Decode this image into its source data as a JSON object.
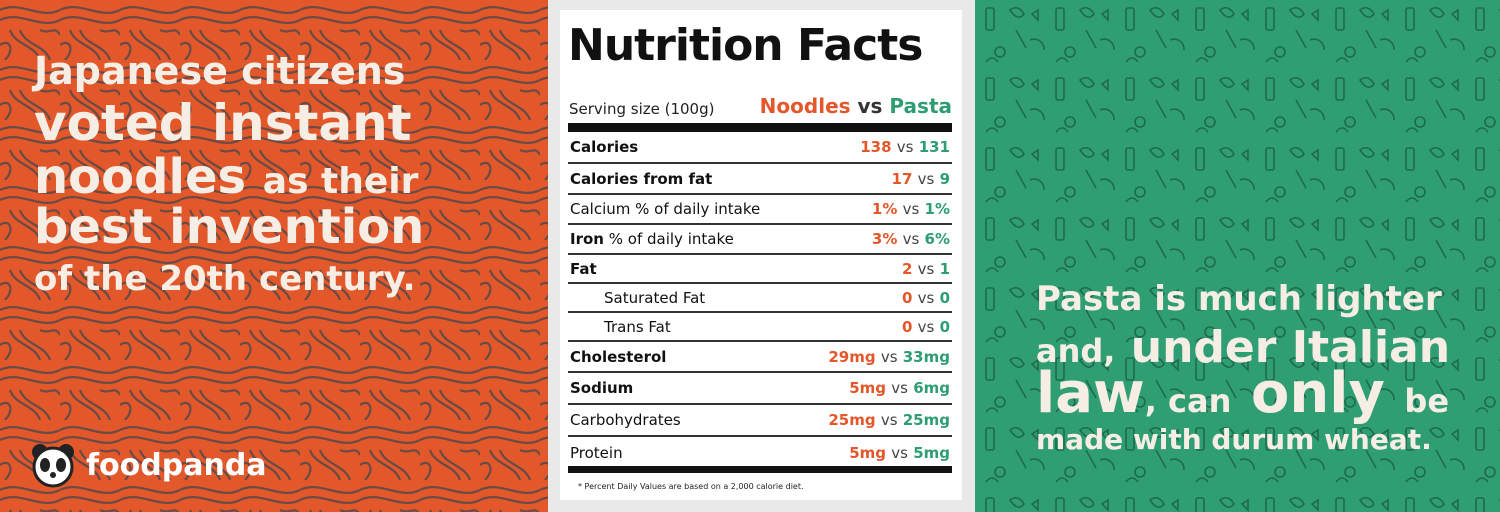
{
  "left_panel": {
    "line1": "Japanese citizens",
    "line2": "voted instant",
    "line3a": "noodles",
    "line3b": "as their",
    "line4": "best invention",
    "line5": "of the 20th century."
  },
  "brand": "foodpanda",
  "table": {
    "title": "Nutrition Facts",
    "serving": "Serving size (100g)",
    "noodles": "Noodles",
    "vs": "vs",
    "pasta": "Pasta",
    "rows": [
      {
        "label": "Calories",
        "noodles": "138",
        "pasta": "131"
      },
      {
        "label": "Calories from fat",
        "noodles": "17",
        "pasta": "9"
      },
      {
        "label": "Calcium",
        "note": "% of daily intake",
        "noodles": "1%",
        "pasta": "1%"
      },
      {
        "label": "Iron",
        "note": "% of daily intake",
        "noodles": "3%",
        "pasta": "6%"
      },
      {
        "label": "Fat",
        "noodles": "2",
        "pasta": "1",
        "subrows": [
          {
            "label": "Saturated Fat",
            "noodles": "0",
            "pasta": "0"
          },
          {
            "label": "Trans Fat",
            "noodles": "0",
            "pasta": "0"
          }
        ]
      },
      {
        "label": "Cholesterol",
        "noodles": "29mg",
        "pasta": "33mg"
      },
      {
        "label": "Sodium",
        "noodles": "5mg",
        "pasta": "6mg"
      },
      {
        "label": "Carbohydrates",
        "noodles": "25mg",
        "pasta": "25mg"
      },
      {
        "label": "Protein",
        "noodles": "5mg",
        "pasta": "5mg"
      }
    ],
    "footnote": "* Percent Daily Values are based on a 2,000 calorie diet."
  },
  "right_panel": {
    "line1": "Pasta is much lighter",
    "line2a": "and,",
    "line2b": "under Italian",
    "line3a": "law",
    "line3b": ", can",
    "line3c": "only",
    "line3d": "be",
    "line4": "made with durum wheat."
  }
}
